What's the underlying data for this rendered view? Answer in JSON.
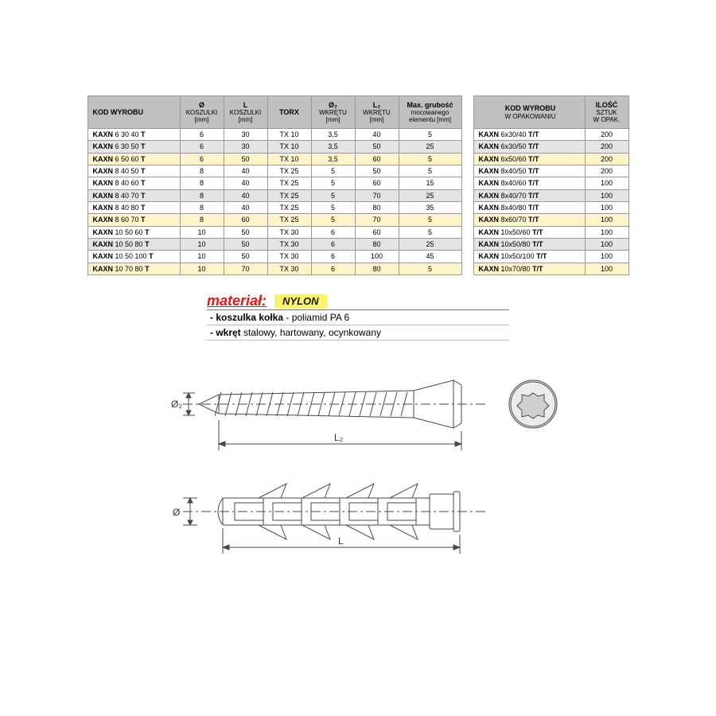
{
  "table1": {
    "headers": {
      "kod": "KOD WYROBU",
      "d": "Ø",
      "d_sub": "KOSZULKI",
      "d_unit": "[mm]",
      "l": "L",
      "l_sub": "KOSZULKI",
      "l_unit": "[mm]",
      "torx": "TORX",
      "d2": "Ø₂",
      "d2_sub": "WKRĘTU",
      "d2_unit": "[mm]",
      "l2": "L₂",
      "l2_sub": "WKRĘTU",
      "l2_unit": "[mm]",
      "max": "Max. grubość",
      "max_sub": "mocowanego",
      "max_sub2": "elementu [mm]"
    },
    "rows": [
      {
        "style": "white",
        "kod_pre": "KAXN",
        "kod": " 6 30 40 ",
        "kod_suf": "T",
        "d": "6",
        "l": "30",
        "torx": "TX 10",
        "d2": "3,5",
        "l2": "40",
        "max": "5"
      },
      {
        "style": "grey",
        "kod_pre": "KAXN",
        "kod": " 6 30 50 ",
        "kod_suf": "T",
        "d": "6",
        "l": "30",
        "torx": "TX 10",
        "d2": "3,5",
        "l2": "50",
        "max": "25"
      },
      {
        "style": "yellow",
        "kod_pre": "KAXN",
        "kod": " 6 50 60 ",
        "kod_suf": "T",
        "d": "6",
        "l": "50",
        "torx": "TX 10",
        "d2": "3,5",
        "l2": "60",
        "max": "5"
      },
      {
        "style": "white",
        "kod_pre": "KAXN",
        "kod": " 8 40 50 ",
        "kod_suf": "T",
        "d": "8",
        "l": "40",
        "torx": "TX 25",
        "d2": "5",
        "l2": "50",
        "max": "5"
      },
      {
        "style": "white",
        "kod_pre": "KAXN",
        "kod": " 8 40 60 ",
        "kod_suf": "T",
        "d": "8",
        "l": "40",
        "torx": "TX 25",
        "d2": "5",
        "l2": "60",
        "max": "15"
      },
      {
        "style": "grey",
        "kod_pre": "KAXN",
        "kod": " 8 40 70 ",
        "kod_suf": "T",
        "d": "8",
        "l": "40",
        "torx": "TX 25",
        "d2": "5",
        "l2": "70",
        "max": "25"
      },
      {
        "style": "white",
        "kod_pre": "KAXN",
        "kod": " 8 40 80 ",
        "kod_suf": "T",
        "d": "8",
        "l": "40",
        "torx": "TX 25",
        "d2": "5",
        "l2": "80",
        "max": "35"
      },
      {
        "style": "yellow",
        "kod_pre": "KAXN",
        "kod": " 8 60 70 ",
        "kod_suf": "T",
        "d": "8",
        "l": "60",
        "torx": "TX 25",
        "d2": "5",
        "l2": "70",
        "max": "5"
      },
      {
        "style": "white",
        "kod_pre": "KAXN",
        "kod": " 10 50 60 ",
        "kod_suf": "T",
        "d": "10",
        "l": "50",
        "torx": "TX 30",
        "d2": "6",
        "l2": "60",
        "max": "5"
      },
      {
        "style": "grey",
        "kod_pre": "KAXN",
        "kod": " 10 50 80 ",
        "kod_suf": "T",
        "d": "10",
        "l": "50",
        "torx": "TX 30",
        "d2": "6",
        "l2": "80",
        "max": "25"
      },
      {
        "style": "white",
        "kod_pre": "KAXN",
        "kod": " 10 50 100 ",
        "kod_suf": "T",
        "d": "10",
        "l": "50",
        "torx": "TX 30",
        "d2": "6",
        "l2": "100",
        "max": "45"
      },
      {
        "style": "yellow",
        "kod_pre": "KAXN",
        "kod": " 10 70 80 ",
        "kod_suf": "T",
        "d": "10",
        "l": "70",
        "torx": "TX 30",
        "d2": "6",
        "l2": "80",
        "max": "5"
      }
    ]
  },
  "table2": {
    "headers": {
      "kod": "KOD WYROBU",
      "kod_sub": "W OPAKOWANIU",
      "qty": "ILOŚĆ",
      "qty_sub": "SZTUK",
      "qty_sub2": "W OPAK."
    },
    "rows": [
      {
        "style": "white",
        "kod_pre": "KAXN",
        "kod": " 6x30/40 ",
        "kod_suf": "T/T",
        "qty": "200"
      },
      {
        "style": "grey",
        "kod_pre": "KAXN",
        "kod": " 6x30/50 ",
        "kod_suf": "T/T",
        "qty": "200"
      },
      {
        "style": "yellow",
        "kod_pre": "KAXN",
        "kod": " 6x50/60 ",
        "kod_suf": "T/T",
        "qty": "200"
      },
      {
        "style": "white",
        "kod_pre": "KAXN",
        "kod": " 8x40/50 ",
        "kod_suf": "T/T",
        "qty": "200"
      },
      {
        "style": "white",
        "kod_pre": "KAXN",
        "kod": " 8x40/60 ",
        "kod_suf": "T/T",
        "qty": "100"
      },
      {
        "style": "grey",
        "kod_pre": "KAXN",
        "kod": " 8x40/70 ",
        "kod_suf": "T/T",
        "qty": "100"
      },
      {
        "style": "white",
        "kod_pre": "KAXN",
        "kod": " 8x40/80 ",
        "kod_suf": "T/T",
        "qty": "100"
      },
      {
        "style": "yellow",
        "kod_pre": "KAXN",
        "kod": " 8x60/70 ",
        "kod_suf": "T/T",
        "qty": "100"
      },
      {
        "style": "white",
        "kod_pre": "KAXN",
        "kod": " 10x50/60 ",
        "kod_suf": "T/T",
        "qty": "100"
      },
      {
        "style": "grey",
        "kod_pre": "KAXN",
        "kod": " 10x50/80 ",
        "kod_suf": "T/T",
        "qty": "100"
      },
      {
        "style": "white",
        "kod_pre": "KAXN",
        "kod": " 10x50/100 ",
        "kod_suf": "T/T",
        "qty": "100"
      },
      {
        "style": "yellow",
        "kod_pre": "KAXN",
        "kod": " 10x70/80 ",
        "kod_suf": "T/T",
        "qty": "100"
      }
    ]
  },
  "material": {
    "title": "materiał:",
    "badge": "NYLON",
    "line1_b": "- koszulka kołka",
    "line1_r": " - poliamid PA 6",
    "line2_b": "- wkręt",
    "line2_r": " stalowy, hartowany, ocynkowany"
  },
  "diagram": {
    "d2_label": "Ø₂",
    "l2_label": "L₂",
    "d_label": "Ø",
    "l_label": "L",
    "colors": {
      "stroke": "#4a4a4a",
      "dim": "#333333",
      "fill_face": "#dcdcdc"
    }
  }
}
